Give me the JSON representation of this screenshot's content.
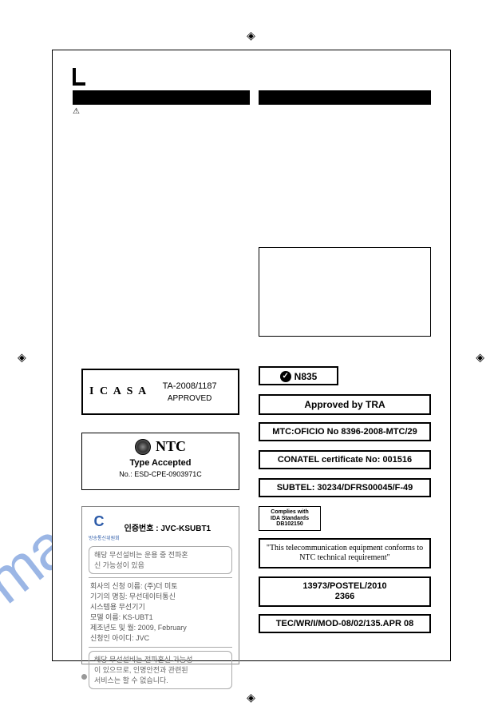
{
  "watermark": "manualshive.com",
  "crop_mark": "◈",
  "warning_glyph": "⚠",
  "icasa": {
    "logo": "I C A S A",
    "number": "TA-2008/1187",
    "approved": "APPROVED"
  },
  "ntc": {
    "title": "NTC",
    "sub": "Type Accepted",
    "no": "No.: ESD-CPE-0903971C"
  },
  "korean": {
    "cert_label": "인증번호 : JVC-KSUBT1",
    "org": "방송통신위원회",
    "box1_l1": "해당 무선설비는 운용 중 전파혼",
    "box1_l2": "신 가능성이 있음",
    "mid_l1": "회사의 신청 이름: (주)더 미토",
    "mid_l2": "기기의 명칭: 무선데이터통신",
    "mid_l3": "시스템용 무선기기",
    "mid_l4": "모델 이름: KS-UBT1",
    "mid_l5": "제조년도 및 월: 2009, February",
    "mid_l6": "신청인 아이디: JVC",
    "box2_l1": "해당 무선설비는 전파혼신 가능성",
    "box2_l2": "이 있으므로, 인명안전과 관련된",
    "box2_l3": "서비스는 할 수 없습니다."
  },
  "right": {
    "n835": "N835",
    "tra": "Approved by TRA",
    "mtc": "MTC:OFICIO No 8396-2008-MTC/29",
    "conatel": "CONATEL certificate No: 001516",
    "subtel": "SUBTEL: 30234/DFRS00045/F-49",
    "ida_l1": "Complies with",
    "ida_l2": "IDA Standards",
    "ida_l3": "DB102150",
    "ntc_conform": "\"This telecommunication equipment conforms to NTC technical requirement\"",
    "postel_l1": "13973/POSTEL/2010",
    "postel_l2": "2366",
    "tec": "TEC/WR/I/MOD-08/02/135.APR 08"
  },
  "colors": {
    "watermark": "#4a7bd0",
    "border": "#000000",
    "text_grey": "#666666"
  }
}
